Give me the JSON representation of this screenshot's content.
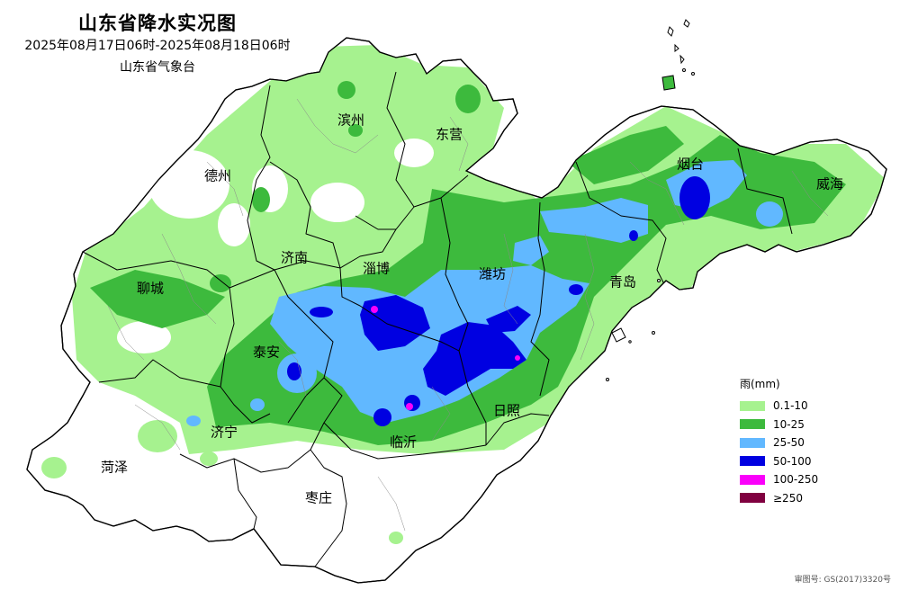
{
  "header": {
    "title": "山东省降水实况图",
    "period": "2025年08月17日06时-2025年08月18日06时",
    "agency": "山东省气象台"
  },
  "cities": [
    {
      "id": "binzhou",
      "name": "滨州"
    },
    {
      "id": "dongying",
      "name": "东营"
    },
    {
      "id": "dezhou",
      "name": "德州"
    },
    {
      "id": "yantai",
      "name": "烟台"
    },
    {
      "id": "weihai",
      "name": "威海"
    },
    {
      "id": "jinan",
      "name": "济南"
    },
    {
      "id": "zibo",
      "name": "淄博"
    },
    {
      "id": "weifang",
      "name": "潍坊"
    },
    {
      "id": "qingdao",
      "name": "青岛"
    },
    {
      "id": "liaocheng",
      "name": "聊城"
    },
    {
      "id": "taian",
      "name": "泰安"
    },
    {
      "id": "rizhao",
      "name": "日照"
    },
    {
      "id": "jining",
      "name": "济宁"
    },
    {
      "id": "linyi",
      "name": "临沂"
    },
    {
      "id": "heze",
      "name": "菏泽"
    },
    {
      "id": "zaozhuang",
      "name": "枣庄"
    }
  ],
  "legend": {
    "title": "雨(mm)",
    "items": [
      {
        "label": "0.1-10",
        "color": "#a6f28f"
      },
      {
        "label": "10-25",
        "color": "#3dba3d"
      },
      {
        "label": "25-50",
        "color": "#61b8ff"
      },
      {
        "label": "50-100",
        "color": "#0000e1"
      },
      {
        "label": "100-250",
        "color": "#fa00fa"
      },
      {
        "label": "≥250",
        "color": "#800040"
      }
    ]
  },
  "footer": {
    "approval": "审图号: GS(2017)3320号"
  }
}
